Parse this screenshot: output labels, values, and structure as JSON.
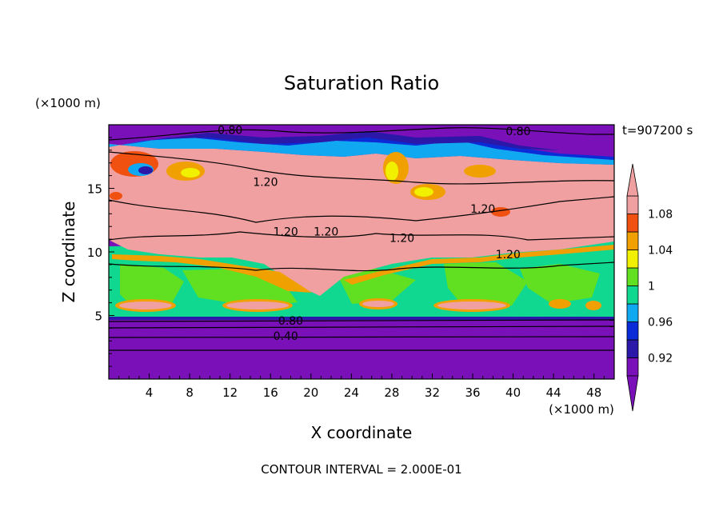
{
  "chart_data": {
    "type": "heatmap",
    "title": "Saturation Ratio",
    "xlabel": "X coordinate",
    "ylabel": "Z coordinate",
    "x_unit": "(×1000 m)",
    "y_unit": "(×1000 m)",
    "time_label": "t=907200 s",
    "footer": "CONTOUR INTERVAL = 2.000E-01",
    "xlim": [
      0,
      50
    ],
    "ylim": [
      0,
      20
    ],
    "x_ticks": [
      4,
      8,
      12,
      16,
      20,
      24,
      28,
      32,
      36,
      40,
      44,
      48
    ],
    "y_ticks": [
      5,
      10,
      15
    ],
    "colorbar": {
      "labels": [
        "1.08",
        "1.04",
        "1",
        "0.96",
        "0.92"
      ],
      "levels": [
        0.92,
        0.94,
        0.96,
        0.98,
        1.0,
        1.02,
        1.04,
        1.06,
        1.08,
        1.1
      ],
      "colors": [
        "#7a10b8",
        "#2b18a8",
        "#0a2cd8",
        "#10a8f0",
        "#10d890",
        "#60e020",
        "#f0f000",
        "#f0a000",
        "#f05010",
        "#f0a0a0"
      ]
    },
    "contour_labels": [
      {
        "text": "0.80",
        "x": 12.0,
        "z": 19.6
      },
      {
        "text": "0.80",
        "x": 40.5,
        "z": 19.5
      },
      {
        "text": "1.20",
        "x": 15.5,
        "z": 15.5
      },
      {
        "text": "1.20",
        "x": 37.0,
        "z": 13.4
      },
      {
        "text": "1.20",
        "x": 17.5,
        "z": 11.6
      },
      {
        "text": "1.20",
        "x": 21.5,
        "z": 11.6
      },
      {
        "text": "1.20",
        "x": 29.0,
        "z": 11.1
      },
      {
        "text": "1.20",
        "x": 39.5,
        "z": 9.8
      },
      {
        "text": "0.80",
        "x": 18.0,
        "z": 4.6
      },
      {
        "text": "0.40",
        "x": 17.5,
        "z": 3.4
      }
    ]
  }
}
